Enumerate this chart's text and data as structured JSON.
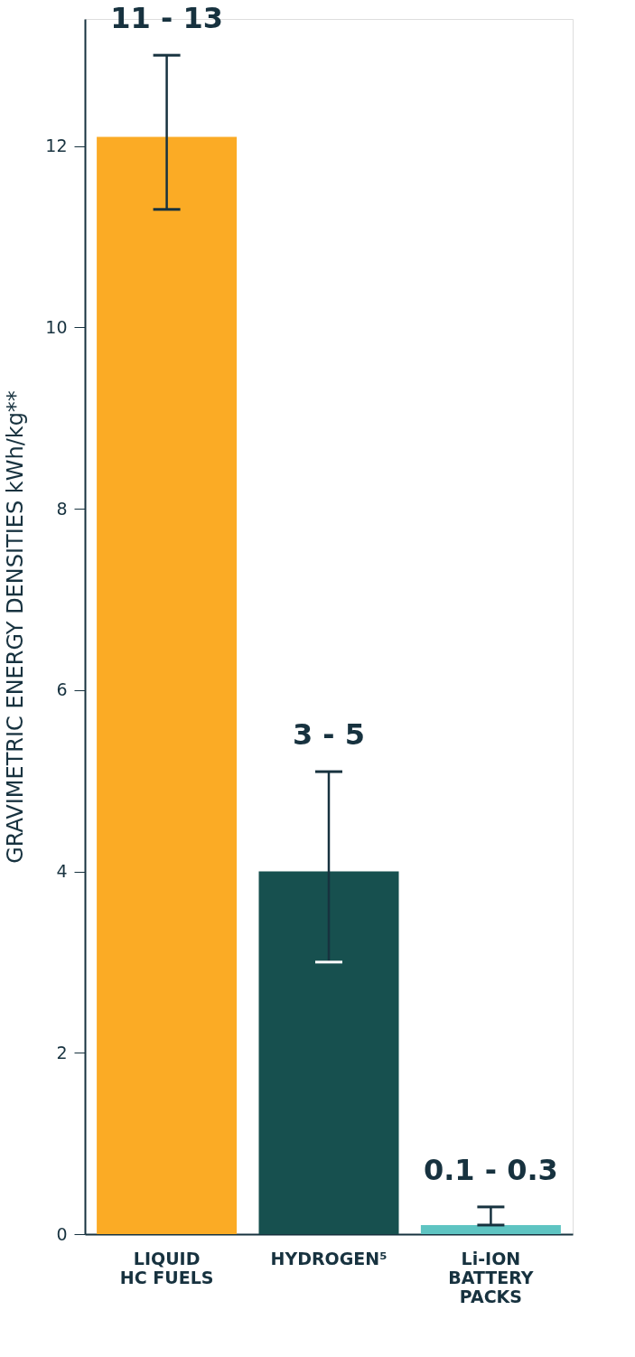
{
  "chart_data": {
    "type": "bar",
    "ylabel": "GRAVIMETRIC ENERGY DENSITIES kWh/kg**",
    "categories": [
      "LIQUID\nHC FUELS",
      "HYDROGEN⁵",
      "Li-ION\nBATTERY\nPACKS"
    ],
    "values": [
      12.1,
      4.0,
      0.1
    ],
    "colors": [
      "#fbab25",
      "#17504f",
      "#5ec4c2"
    ],
    "errors": [
      [
        11.3,
        13.0
      ],
      [
        3.0,
        5.1
      ],
      [
        0.1,
        0.3
      ]
    ],
    "annotations": [
      "11 - 13",
      "3 - 5",
      "0.1 - 0.3"
    ],
    "ylim": [
      0,
      13.4
    ],
    "yticks": [
      0,
      2,
      4,
      6,
      8,
      10,
      12
    ],
    "grid": false
  }
}
